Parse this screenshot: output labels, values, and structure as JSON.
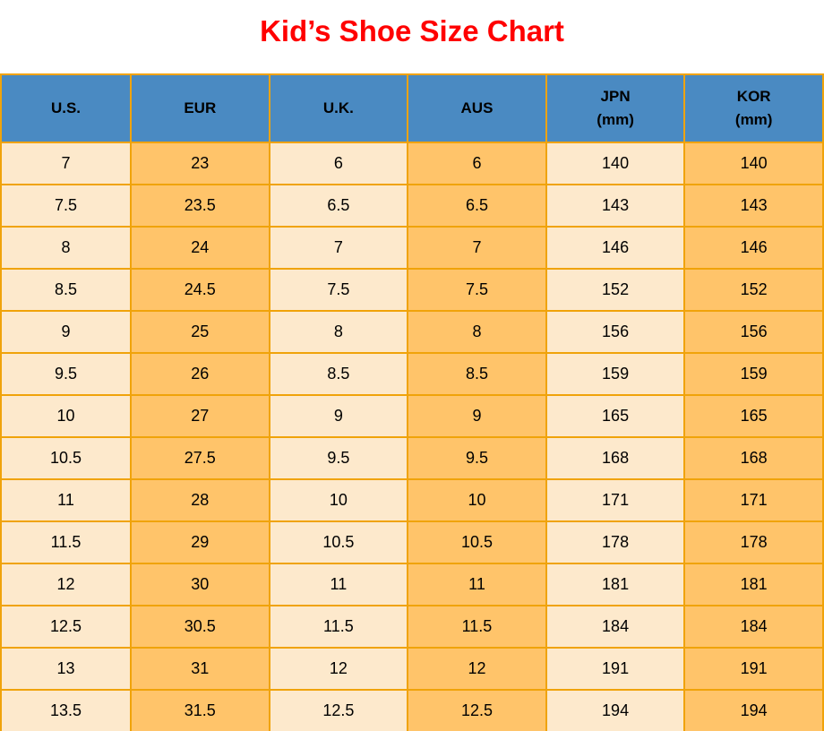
{
  "title": "Kid’s Shoe Size Chart",
  "colors": {
    "title_red": "#ff0000",
    "header_blue": "#4a8ac2",
    "cell_cream": "#fde9cc",
    "cell_orange": "#ffc46a",
    "border_gold": "#f0a30a",
    "text_black": "#000000"
  },
  "columns": [
    {
      "key": "us",
      "label": "U.S.",
      "sublabel": ""
    },
    {
      "key": "eur",
      "label": "EUR",
      "sublabel": ""
    },
    {
      "key": "uk",
      "label": "U.K.",
      "sublabel": ""
    },
    {
      "key": "aus",
      "label": "AUS",
      "sublabel": ""
    },
    {
      "key": "jpn",
      "label": "JPN",
      "sublabel": "(mm)"
    },
    {
      "key": "kor",
      "label": "KOR",
      "sublabel": "(mm)"
    }
  ],
  "rows": [
    [
      "7",
      "23",
      "6",
      "6",
      "140",
      "140"
    ],
    [
      "7.5",
      "23.5",
      "6.5",
      "6.5",
      "143",
      "143"
    ],
    [
      "8",
      "24",
      "7",
      "7",
      "146",
      "146"
    ],
    [
      "8.5",
      "24.5",
      "7.5",
      "7.5",
      "152",
      "152"
    ],
    [
      "9",
      "25",
      "8",
      "8",
      "156",
      "156"
    ],
    [
      "9.5",
      "26",
      "8.5",
      "8.5",
      "159",
      "159"
    ],
    [
      "10",
      "27",
      "9",
      "9",
      "165",
      "165"
    ],
    [
      "10.5",
      "27.5",
      "9.5",
      "9.5",
      "168",
      "168"
    ],
    [
      "11",
      "28",
      "10",
      "10",
      "171",
      "171"
    ],
    [
      "11.5",
      "29",
      "10.5",
      "10.5",
      "178",
      "178"
    ],
    [
      "12",
      "30",
      "11",
      "11",
      "181",
      "181"
    ],
    [
      "12.5",
      "30.5",
      "11.5",
      "11.5",
      "184",
      "184"
    ],
    [
      "13",
      "31",
      "12",
      "12",
      "191",
      "191"
    ],
    [
      "13.5",
      "31.5",
      "12.5",
      "12.5",
      "194",
      "194"
    ]
  ],
  "chart_data": {
    "type": "table",
    "title": "Kid’s Shoe Size Chart",
    "columns": [
      "U.S.",
      "EUR",
      "U.K.",
      "AUS",
      "JPN (mm)",
      "KOR (mm)"
    ],
    "rows": [
      [
        "7",
        "23",
        "6",
        "6",
        "140",
        "140"
      ],
      [
        "7.5",
        "23.5",
        "6.5",
        "6.5",
        "143",
        "143"
      ],
      [
        "8",
        "24",
        "7",
        "7",
        "146",
        "146"
      ],
      [
        "8.5",
        "24.5",
        "7.5",
        "7.5",
        "152",
        "152"
      ],
      [
        "9",
        "25",
        "8",
        "8",
        "156",
        "156"
      ],
      [
        "9.5",
        "26",
        "8.5",
        "8.5",
        "159",
        "159"
      ],
      [
        "10",
        "27",
        "9",
        "9",
        "165",
        "165"
      ],
      [
        "10.5",
        "27.5",
        "9.5",
        "9.5",
        "168",
        "168"
      ],
      [
        "11",
        "28",
        "10",
        "10",
        "171",
        "171"
      ],
      [
        "11.5",
        "29",
        "10.5",
        "10.5",
        "178",
        "178"
      ],
      [
        "12",
        "30",
        "11",
        "11",
        "181",
        "181"
      ],
      [
        "12.5",
        "30.5",
        "11.5",
        "11.5",
        "184",
        "184"
      ],
      [
        "13",
        "31",
        "12",
        "12",
        "191",
        "191"
      ],
      [
        "13.5",
        "31.5",
        "12.5",
        "12.5",
        "194",
        "194"
      ]
    ]
  }
}
